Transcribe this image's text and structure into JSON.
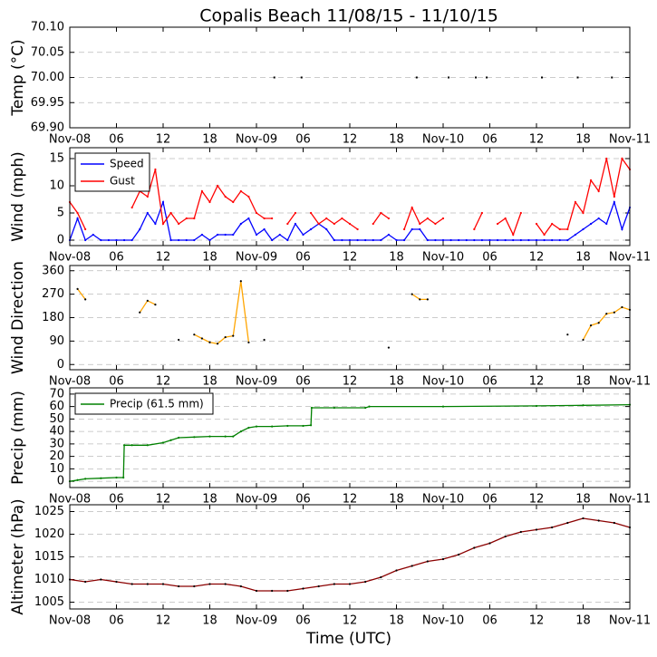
{
  "chart_data": [
    {
      "type": "scatter",
      "title": "Copalis Beach 11/08/15 - 11/10/15",
      "ylabel": "Temp (°C)",
      "grid": true,
      "xlim": [
        0,
        72
      ],
      "xticks": [
        {
          "value": 0,
          "label": "Nov-08"
        },
        {
          "value": 6,
          "label": "06"
        },
        12,
        18,
        {
          "value": 24,
          "label": "Nov-09"
        },
        {
          "value": 30,
          "label": "06"
        },
        {
          "value": 36,
          "label": "12"
        },
        {
          "value": 42,
          "label": "18"
        },
        {
          "value": 48,
          "label": "Nov-10"
        },
        {
          "value": 54,
          "label": "06"
        },
        {
          "value": 60,
          "label": "12"
        },
        {
          "value": 66,
          "label": "18"
        },
        {
          "value": 72,
          "label": "Nov-11"
        }
      ],
      "ylim": [
        69.9,
        70.1
      ],
      "yticks": [
        {
          "value": 69.9,
          "label": "69.90"
        },
        {
          "value": 69.95,
          "label": "69.95"
        },
        {
          "value": 70.0,
          "label": "70.00"
        },
        {
          "value": 70.05,
          "label": "70.05"
        },
        {
          "value": 70.1,
          "label": "70.10"
        }
      ],
      "x": [
        26.3,
        29.8,
        44.6,
        48.7,
        52.2,
        53.6,
        60.7,
        65.3,
        69.7
      ],
      "series": [
        {
          "color": "#000000",
          "values": [
            70.0,
            70.0,
            70.0,
            70.0,
            70.0,
            70.0,
            70.0,
            70.0,
            70.0
          ]
        }
      ]
    },
    {
      "type": "line",
      "ylabel": "Wind (mph)",
      "grid": true,
      "legend": "upper left",
      "xlim": [
        0,
        72
      ],
      "xticks": [
        {
          "value": 0,
          "label": "Nov-08"
        },
        {
          "value": 6,
          "label": "06"
        },
        12,
        18,
        {
          "value": 24,
          "label": "Nov-09"
        },
        {
          "value": 30,
          "label": "06"
        },
        {
          "value": 36,
          "label": "12"
        },
        {
          "value": 42,
          "label": "18"
        },
        {
          "value": 48,
          "label": "Nov-10"
        },
        {
          "value": 54,
          "label": "06"
        },
        {
          "value": 60,
          "label": "12"
        },
        {
          "value": 66,
          "label": "18"
        },
        {
          "value": 72,
          "label": "Nov-11"
        }
      ],
      "ylim": [
        -1,
        17
      ],
      "yticks": [
        0,
        5,
        10,
        15
      ],
      "x": [
        0,
        1,
        2,
        3,
        4,
        5,
        6,
        7,
        8,
        9,
        10,
        11,
        12,
        13,
        14,
        15,
        16,
        17,
        18,
        19,
        20,
        21,
        22,
        23,
        24,
        25,
        26,
        27,
        28,
        29,
        30,
        31,
        32,
        33,
        34,
        35,
        36,
        37,
        38,
        39,
        40,
        41,
        42,
        43,
        44,
        45,
        46,
        47,
        48,
        49,
        50,
        51,
        52,
        53,
        54,
        55,
        56,
        57,
        58,
        59,
        60,
        61,
        62,
        63,
        64,
        65,
        66,
        67,
        68,
        69,
        70,
        71,
        72
      ],
      "series": [
        {
          "name": "Speed",
          "color": "#0000ff",
          "values": [
            0,
            4,
            0,
            1,
            0,
            0,
            0,
            0,
            0,
            2,
            5,
            3,
            7,
            0,
            0,
            0,
            0,
            1,
            0,
            1,
            1,
            1,
            3,
            4,
            1,
            2,
            0,
            1,
            0,
            3,
            1,
            2,
            3,
            2,
            0,
            0,
            0,
            0,
            0,
            0,
            0,
            1,
            0,
            0,
            2,
            2,
            0,
            0,
            0,
            0,
            0,
            0,
            0,
            0,
            0,
            0,
            0,
            0,
            0,
            0,
            0,
            0,
            0,
            0,
            0,
            1,
            2,
            3,
            4,
            3,
            7,
            2,
            6
          ]
        },
        {
          "name": "Gust",
          "color": "#ff0000",
          "values": [
            7,
            5,
            2,
            null,
            null,
            null,
            null,
            null,
            6,
            9,
            8,
            13,
            3,
            5,
            3,
            4,
            4,
            9,
            7,
            10,
            8,
            7,
            9,
            8,
            5,
            4,
            4,
            null,
            3,
            5,
            null,
            5,
            3,
            4,
            3,
            4,
            3,
            2,
            null,
            3,
            5,
            4,
            null,
            2,
            6,
            3,
            4,
            3,
            4,
            null,
            null,
            null,
            2,
            5,
            null,
            3,
            4,
            1,
            5,
            null,
            3,
            1,
            3,
            2,
            2,
            7,
            5,
            11,
            9,
            15,
            8,
            15,
            13
          ]
        }
      ]
    },
    {
      "type": "line",
      "ylabel": "Wind Direction",
      "grid": true,
      "xlim": [
        0,
        72
      ],
      "xticks": [
        {
          "value": 0,
          "label": "Nov-08"
        },
        {
          "value": 6,
          "label": "06"
        },
        12,
        18,
        {
          "value": 24,
          "label": "Nov-09"
        },
        {
          "value": 30,
          "label": "06"
        },
        {
          "value": 36,
          "label": "12"
        },
        {
          "value": 42,
          "label": "18"
        },
        {
          "value": 48,
          "label": "Nov-10"
        },
        {
          "value": 54,
          "label": "06"
        },
        {
          "value": 60,
          "label": "12"
        },
        {
          "value": 66,
          "label": "18"
        },
        {
          "value": 72,
          "label": "Nov-11"
        }
      ],
      "ylim": [
        -20,
        380
      ],
      "yticks": [
        0,
        90,
        180,
        270,
        360
      ],
      "x": [
        0,
        1,
        2,
        3,
        4,
        5,
        6,
        7,
        8,
        9,
        10,
        11,
        12,
        13,
        14,
        15,
        16,
        17,
        18,
        19,
        20,
        21,
        22,
        23,
        24,
        25,
        26,
        27,
        28,
        29,
        30,
        31,
        32,
        33,
        34,
        35,
        36,
        37,
        38,
        39,
        40,
        41,
        42,
        43,
        44,
        45,
        46,
        47,
        48,
        49,
        50,
        51,
        52,
        53,
        54,
        55,
        56,
        57,
        58,
        59,
        60,
        61,
        62,
        63,
        64,
        65,
        66,
        67,
        68,
        69,
        70,
        71,
        72
      ],
      "series": [
        {
          "color": "#ffa500",
          "marker_color": "#000000",
          "values": [
            null,
            290,
            250,
            null,
            null,
            null,
            null,
            null,
            null,
            200,
            245,
            230,
            null,
            null,
            95,
            null,
            115,
            100,
            85,
            80,
            105,
            110,
            320,
            85,
            null,
            95,
            null,
            null,
            null,
            null,
            null,
            null,
            null,
            null,
            null,
            null,
            null,
            null,
            null,
            null,
            null,
            65,
            null,
            null,
            270,
            250,
            250,
            null,
            null,
            null,
            null,
            null,
            null,
            null,
            null,
            null,
            null,
            null,
            null,
            null,
            null,
            null,
            null,
            null,
            115,
            null,
            95,
            150,
            160,
            195,
            200,
            220,
            210
          ]
        }
      ]
    },
    {
      "type": "line",
      "ylabel": "Precip (mm)",
      "grid": true,
      "legend": "upper left",
      "xlim": [
        0,
        72
      ],
      "xticks": [
        {
          "value": 0,
          "label": "Nov-08"
        },
        {
          "value": 6,
          "label": "06"
        },
        12,
        18,
        {
          "value": 24,
          "label": "Nov-09"
        },
        {
          "value": 30,
          "label": "06"
        },
        {
          "value": 36,
          "label": "12"
        },
        {
          "value": 42,
          "label": "18"
        },
        {
          "value": 48,
          "label": "Nov-10"
        },
        {
          "value": 54,
          "label": "06"
        },
        {
          "value": 60,
          "label": "12"
        },
        {
          "value": 66,
          "label": "18"
        },
        {
          "value": 72,
          "label": "Nov-11"
        }
      ],
      "ylim": [
        -5,
        75
      ],
      "yticks": [
        0,
        10,
        20,
        30,
        40,
        50,
        60,
        70
      ],
      "x": [
        0,
        1,
        2,
        4,
        6,
        6.9,
        7,
        8,
        10,
        12,
        13,
        14,
        16,
        18,
        20,
        21,
        22,
        23,
        24,
        26,
        28,
        30,
        31,
        31.1,
        34,
        38,
        38.5,
        48,
        60,
        66,
        72
      ],
      "series": [
        {
          "name": "Precip (61.5 mm)",
          "color": "#008000",
          "values": [
            0,
            1,
            2,
            2.5,
            3,
            3,
            29,
            29,
            29,
            31,
            33,
            35,
            35.5,
            36,
            36,
            36,
            40,
            43,
            44,
            44,
            44.5,
            44.5,
            45,
            59,
            59,
            59,
            60,
            60,
            60.5,
            61,
            61.5
          ]
        }
      ]
    },
    {
      "type": "line",
      "ylabel": "Altimeter (hPa)",
      "xlabel": "Time (UTC)",
      "grid": true,
      "xlim": [
        0,
        72
      ],
      "xticks": [
        {
          "value": 0,
          "label": "Nov-08"
        },
        {
          "value": 6,
          "label": "06"
        },
        12,
        18,
        {
          "value": 24,
          "label": "Nov-09"
        },
        {
          "value": 30,
          "label": "06"
        },
        {
          "value": 36,
          "label": "12"
        },
        {
          "value": 42,
          "label": "18"
        },
        {
          "value": 48,
          "label": "Nov-10"
        },
        {
          "value": 54,
          "label": "06"
        },
        {
          "value": 60,
          "label": "12"
        },
        {
          "value": 66,
          "label": "18"
        },
        {
          "value": 72,
          "label": "Nov-11"
        }
      ],
      "ylim": [
        1003.5,
        1026.5
      ],
      "yticks": [
        1005,
        1010,
        1015,
        1020,
        1025
      ],
      "x": [
        0,
        2,
        4,
        6,
        8,
        10,
        12,
        14,
        16,
        18,
        20,
        22,
        24,
        26,
        28,
        30,
        32,
        34,
        36,
        38,
        40,
        42,
        44,
        46,
        48,
        50,
        52,
        54,
        56,
        58,
        60,
        62,
        64,
        66,
        68,
        70,
        72
      ],
      "series": [
        {
          "color": "#8b0000",
          "marker_color": "#000000",
          "values": [
            1010,
            1009.5,
            1010,
            1009.5,
            1009,
            1009,
            1009,
            1008.5,
            1008.5,
            1009,
            1009,
            1008.5,
            1007.5,
            1007.5,
            1007.5,
            1008,
            1008.5,
            1009,
            1009,
            1009.5,
            1010.5,
            1012,
            1013,
            1014,
            1014.5,
            1015.5,
            1017,
            1018,
            1019.5,
            1020.5,
            1021,
            1021.5,
            1022.5,
            1023.5,
            1023,
            1022.5,
            1021.5
          ]
        }
      ]
    }
  ]
}
